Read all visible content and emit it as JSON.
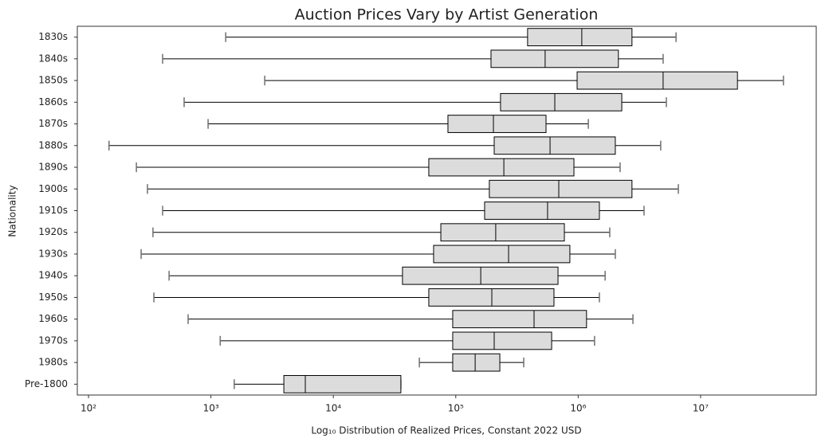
{
  "chart_data": {
    "type": "boxplot",
    "orientation": "horizontal",
    "title": "Auction Prices Vary by Artist Generation",
    "x_label": "Log₁₀ Distribution of Realized Prices, Constant 2022 USD",
    "y_label": "Nationality",
    "x_scale": "log",
    "xlim": [
      81,
      88000000
    ],
    "xticks": [
      {
        "value": 100,
        "label": "10²"
      },
      {
        "value": 1000,
        "label": "10³"
      },
      {
        "value": 10000,
        "label": "10⁴"
      },
      {
        "value": 100000,
        "label": "10⁵"
      },
      {
        "value": 1000000,
        "label": "10⁶"
      },
      {
        "value": 10000000,
        "label": "10⁷"
      }
    ],
    "grid": false,
    "box_color": "#dcdcdc",
    "line_color": "#000000",
    "cap_color": "#707070",
    "categories": [
      "1830s",
      "1840s",
      "1850s",
      "1860s",
      "1870s",
      "1880s",
      "1890s",
      "1900s",
      "1910s",
      "1920s",
      "1930s",
      "1940s",
      "1950s",
      "1960s",
      "1970s",
      "1980s",
      "Pre-1800"
    ],
    "whisker_low": [
      1320,
      403,
      2750,
      604,
      948,
      147,
      246,
      303,
      403,
      336,
      269,
      455,
      342,
      651,
      1190,
      50400,
      1550
    ],
    "q1": [
      386000,
      194000,
      980000,
      232000,
      86300,
      206000,
      60200,
      188000,
      172000,
      75500,
      65900,
      36700,
      60200,
      94400,
      94400,
      94400,
      3940
    ],
    "median": [
      1070000,
      537000,
      4940000,
      644000,
      203000,
      589000,
      247000,
      694000,
      562000,
      212000,
      270000,
      160000,
      197000,
      436000,
      206000,
      144000,
      5900
    ],
    "q3": [
      2750000,
      2130000,
      20000000,
      2270000,
      546000,
      2010000,
      923000,
      2750000,
      1490000,
      771000,
      855000,
      684000,
      634000,
      1170000,
      607000,
      229000,
      35600
    ],
    "whisker_high": [
      6300000,
      4940000,
      47500000,
      5250000,
      1210000,
      4720000,
      2200000,
      6580000,
      3450000,
      1810000,
      2010000,
      1660000,
      1490000,
      2800000,
      1360000,
      359000,
      35600
    ]
  }
}
